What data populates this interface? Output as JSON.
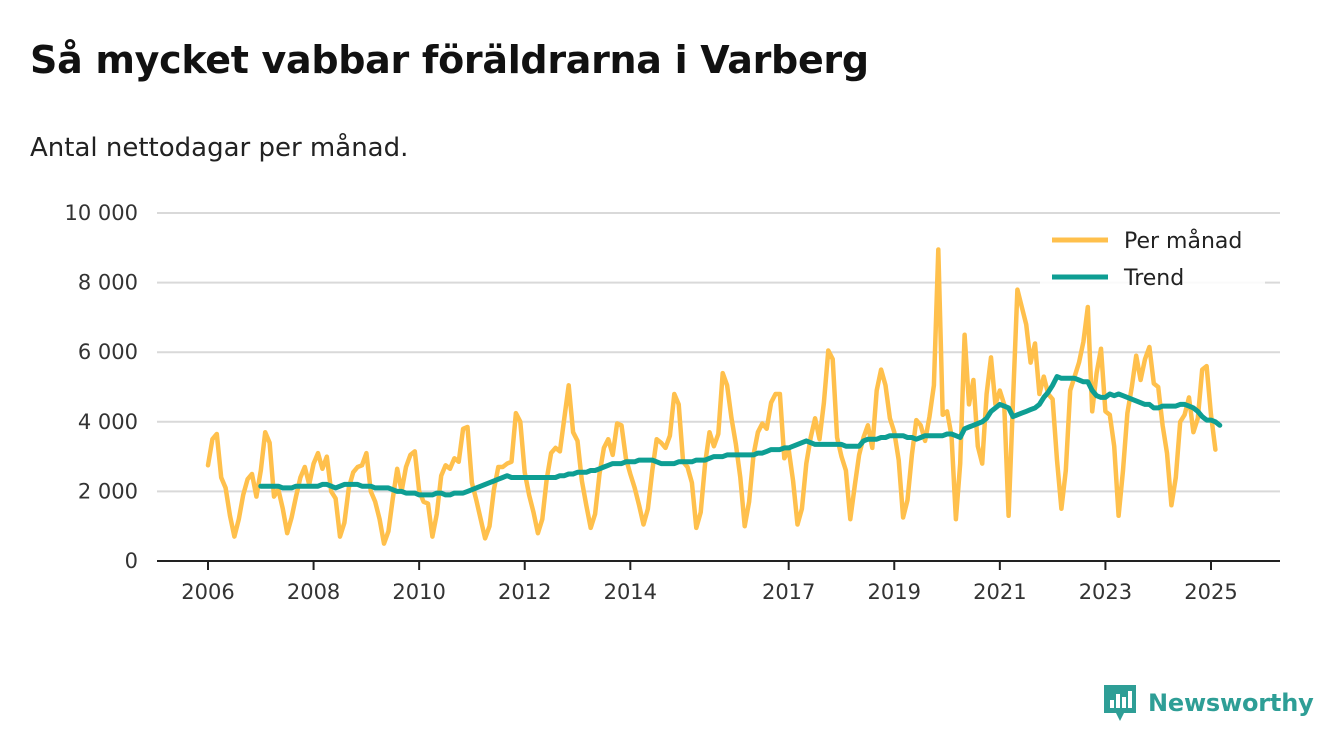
{
  "title": "Så mycket vabbar föräldrarna i Varberg",
  "subtitle": "Antal nettodagar per månad.",
  "brand": {
    "name": "Newsworthy",
    "icon": "newsworthy-logo-icon"
  },
  "colors": {
    "monthly": "#ffc04c",
    "trend": "#0e9e93",
    "grid": "#d9d9d9",
    "axis": "#222222",
    "brand": "#2e9e96"
  },
  "chart_data": {
    "type": "line",
    "title": "Så mycket vabbar föräldrarna i Varberg",
    "ylabel": "Antal nettodagar per månad",
    "xlabel": "",
    "ylim": [
      0,
      10000
    ],
    "xlim": [
      2005.0,
      2025.7
    ],
    "y_ticks": [
      0,
      2000,
      4000,
      6000,
      8000,
      10000
    ],
    "y_tick_labels": [
      "0",
      "2 000",
      "4 000",
      "6 000",
      "8 000",
      "10 000"
    ],
    "x_ticks": [
      2006,
      2008,
      2010,
      2012,
      2014,
      2017,
      2019,
      2021,
      2023,
      2025
    ],
    "x_tick_labels": [
      "2006",
      "2008",
      "2010",
      "2012",
      "2014",
      "2017",
      "2019",
      "2021",
      "2023",
      "2025"
    ],
    "legend": [
      {
        "name": "Per månad",
        "color": "#ffc04c"
      },
      {
        "name": "Trend",
        "color": "#0e9e93"
      }
    ],
    "legend_position": "top-right",
    "series": [
      {
        "name": "Per månad",
        "x_start": 2006.0,
        "x_step": 0.0833333,
        "values": [
          2750,
          3500,
          3650,
          2400,
          2100,
          1300,
          700,
          1200,
          1900,
          2350,
          2500,
          1850,
          2600,
          3700,
          3400,
          1850,
          2050,
          1500,
          800,
          1250,
          1850,
          2400,
          2700,
          2200,
          2800,
          3100,
          2650,
          3000,
          2000,
          1800,
          700,
          1100,
          2100,
          2550,
          2700,
          2750,
          3100,
          2000,
          1700,
          1200,
          500,
          850,
          1800,
          2650,
          2000,
          2700,
          3050,
          3150,
          2000,
          1700,
          1650,
          700,
          1350,
          2450,
          2750,
          2650,
          2950,
          2850,
          3800,
          3850,
          2250,
          1750,
          1200,
          650,
          1000,
          2050,
          2700,
          2700,
          2800,
          2850,
          4250,
          4000,
          2550,
          1900,
          1400,
          800,
          1200,
          2350,
          3100,
          3250,
          3150,
          4100,
          5050,
          3700,
          3450,
          2300,
          1600,
          950,
          1350,
          2500,
          3250,
          3500,
          3050,
          3950,
          3900,
          2950,
          2500,
          2100,
          1600,
          1050,
          1500,
          2600,
          3500,
          3400,
          3250,
          3600,
          4800,
          4500,
          2850,
          2700,
          2250,
          950,
          1400,
          2800,
          3700,
          3300,
          3650,
          5400,
          5050,
          4100,
          3350,
          2400,
          1000,
          1700,
          3050,
          3700,
          3950,
          3800,
          4550,
          4800,
          4800,
          2950,
          3200,
          2300,
          1050,
          1500,
          2800,
          3550,
          4100,
          3500,
          4550,
          6050,
          5800,
          3550,
          3000,
          2600,
          1200,
          2150,
          3050,
          3550,
          3900,
          3250,
          4900,
          5500,
          5050,
          4100,
          3700,
          2900,
          1250,
          1750,
          3050,
          4050,
          3900,
          3450,
          4150,
          5050,
          8950,
          4200,
          4300,
          3600,
          1200,
          2800,
          6500,
          4500,
          5200,
          3300,
          2800,
          4800,
          5850,
          4500,
          4900,
          4500,
          1300,
          4600,
          7800,
          7300,
          6800,
          5700,
          6250,
          4800,
          5300,
          4800,
          4650,
          2900,
          1500,
          2600,
          4900,
          5300,
          5700,
          6300,
          7300,
          4300,
          5400,
          6100,
          4300,
          4200,
          3300,
          1300,
          2600,
          4250,
          5000,
          5900,
          5200,
          5800,
          6150,
          5100,
          5000,
          3900,
          3100,
          1600,
          2400,
          4000,
          4200,
          4700,
          3700,
          4100,
          5500,
          5600,
          4200,
          3200
        ]
      },
      {
        "name": "Trend",
        "x_start": 2007.0,
        "x_step": 0.0833333,
        "values": [
          2150,
          2150,
          2150,
          2150,
          2150,
          2100,
          2100,
          2100,
          2150,
          2150,
          2150,
          2150,
          2150,
          2150,
          2200,
          2200,
          2150,
          2100,
          2150,
          2200,
          2200,
          2200,
          2200,
          2150,
          2150,
          2150,
          2100,
          2100,
          2100,
          2100,
          2050,
          2000,
          2000,
          1950,
          1950,
          1950,
          1900,
          1900,
          1900,
          1900,
          1950,
          1950,
          1900,
          1900,
          1950,
          1950,
          1950,
          2000,
          2050,
          2100,
          2150,
          2200,
          2250,
          2300,
          2350,
          2400,
          2450,
          2400,
          2400,
          2400,
          2400,
          2400,
          2400,
          2400,
          2400,
          2400,
          2400,
          2400,
          2450,
          2450,
          2500,
          2500,
          2550,
          2550,
          2550,
          2600,
          2600,
          2650,
          2700,
          2750,
          2800,
          2800,
          2800,
          2850,
          2850,
          2850,
          2900,
          2900,
          2900,
          2900,
          2850,
          2800,
          2800,
          2800,
          2800,
          2850,
          2850,
          2850,
          2850,
          2900,
          2900,
          2900,
          2950,
          3000,
          3000,
          3000,
          3050,
          3050,
          3050,
          3050,
          3050,
          3050,
          3050,
          3100,
          3100,
          3150,
          3200,
          3200,
          3200,
          3250,
          3250,
          3300,
          3350,
          3400,
          3450,
          3400,
          3350,
          3350,
          3350,
          3350,
          3350,
          3350,
          3350,
          3300,
          3300,
          3300,
          3300,
          3450,
          3500,
          3500,
          3500,
          3550,
          3550,
          3600,
          3600,
          3600,
          3600,
          3550,
          3550,
          3500,
          3550,
          3600,
          3600,
          3600,
          3600,
          3600,
          3650,
          3650,
          3600,
          3550,
          3800,
          3850,
          3900,
          3950,
          4000,
          4100,
          4300,
          4400,
          4500,
          4450,
          4400,
          4150,
          4200,
          4250,
          4300,
          4350,
          4400,
          4500,
          4700,
          4850,
          5050,
          5300,
          5250,
          5250,
          5250,
          5250,
          5200,
          5150,
          5150,
          4900,
          4750,
          4700,
          4700,
          4800,
          4750,
          4800,
          4750,
          4700,
          4650,
          4600,
          4550,
          4500,
          4500,
          4400,
          4400,
          4450,
          4450,
          4450,
          4450,
          4500,
          4500,
          4450,
          4400,
          4300,
          4150,
          4050,
          4050,
          4000,
          3900
        ]
      }
    ]
  }
}
